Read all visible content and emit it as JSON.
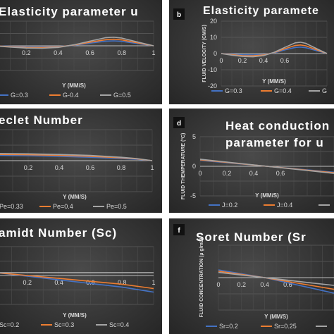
{
  "chart_data": [
    {
      "panel": "a",
      "type": "line",
      "title": "Elasticity parameter u",
      "xlabel": "Y (MM/S)",
      "ylabel": "",
      "xlim": [
        0,
        1
      ],
      "ylim": [
        -20,
        20
      ],
      "x_ticks": [
        "0.2",
        "0.4",
        "0.6",
        "0.8",
        "1"
      ],
      "y_ticks": [],
      "legend_position": "bottom",
      "x": [
        0,
        0.1,
        0.2,
        0.3,
        0.4,
        0.5,
        0.6,
        0.7,
        0.75,
        0.8,
        0.9,
        1
      ],
      "series": [
        {
          "name": "G=0.3",
          "color": "#4472c4",
          "values": [
            0,
            -0.4,
            -0.8,
            -0.9,
            -0.6,
            0.4,
            2.2,
            3.8,
            4.0,
            3.6,
            1.8,
            0
          ]
        },
        {
          "name": "G-0.4",
          "color": "#ed7d31",
          "values": [
            0,
            -0.7,
            -1.3,
            -1.4,
            -0.9,
            0.6,
            2.9,
            5.0,
            5.3,
            4.8,
            2.4,
            0
          ]
        },
        {
          "name": "G=0.5",
          "color": "#a5a5a5",
          "values": [
            0,
            -1.0,
            -1.8,
            -2.0,
            -1.3,
            0.8,
            3.8,
            6.6,
            7.0,
            6.3,
            3.1,
            0
          ]
        }
      ]
    },
    {
      "panel": "b",
      "badge": "b",
      "type": "line",
      "title": "Elasticity paramete",
      "xlabel": "Y (MM/S)",
      "ylabel": "FLUID VELOCITY (CM/S)",
      "xlim": [
        0,
        1
      ],
      "ylim": [
        -20,
        20
      ],
      "x_ticks": [
        "0",
        "0.2",
        "0.4",
        "0.6"
      ],
      "y_ticks": [
        "20",
        "10",
        "0",
        "-10",
        "-20"
      ],
      "legend_position": "bottom",
      "x": [
        0,
        0.1,
        0.2,
        0.3,
        0.4,
        0.5,
        0.6,
        0.7,
        0.75,
        0.8,
        0.9,
        1
      ],
      "series": [
        {
          "name": "G=0.3",
          "color": "#4472c4",
          "values": [
            0,
            -0.4,
            -0.8,
            -0.9,
            -0.6,
            0.4,
            2.2,
            3.8,
            4.0,
            3.6,
            1.8,
            0
          ]
        },
        {
          "name": "G=0.4",
          "color": "#ed7d31",
          "values": [
            0,
            -0.7,
            -1.3,
            -1.4,
            -0.9,
            0.6,
            2.9,
            5.0,
            5.3,
            4.8,
            2.4,
            0
          ]
        },
        {
          "name": "G",
          "color": "#a5a5a5",
          "values": [
            0,
            -1.0,
            -1.8,
            -2.0,
            -1.3,
            0.8,
            3.8,
            6.6,
            7.0,
            6.3,
            3.1,
            0
          ]
        }
      ]
    },
    {
      "panel": "c",
      "type": "line",
      "title": "eclet Number",
      "xlabel": "Y (MM/S)",
      "ylabel": "",
      "xlim": [
        0,
        1
      ],
      "ylim": [
        -5,
        5
      ],
      "x_ticks": [
        "0.2",
        "0.4",
        "0.6",
        "0.8",
        "1"
      ],
      "y_ticks": [],
      "legend_position": "bottom",
      "x": [
        0,
        0.2,
        0.4,
        0.6,
        0.8,
        0.9,
        1
      ],
      "series": [
        {
          "name": "Pe=0.33",
          "color": "#4472c4",
          "values": [
            0.85,
            0.8,
            0.7,
            0.55,
            0.35,
            0.22,
            0
          ]
        },
        {
          "name": "Pe=0.4",
          "color": "#ed7d31",
          "values": [
            1.0,
            0.95,
            0.85,
            0.7,
            0.45,
            0.28,
            0
          ]
        },
        {
          "name": "Pe=0.5",
          "color": "#a5a5a5",
          "values": [
            1.15,
            1.1,
            1.0,
            0.85,
            0.55,
            0.34,
            0
          ]
        }
      ]
    },
    {
      "panel": "d",
      "badge": "d",
      "type": "line",
      "title": "Heat conduction",
      "title2": "parameter for u",
      "xlabel": "Y (MM/S)",
      "ylabel": "FLUID THEMPERATURE (ºC)",
      "xlim": [
        0,
        1
      ],
      "ylim": [
        -5,
        5
      ],
      "x_ticks": [
        "0",
        "0.2",
        "0.4",
        "0.6"
      ],
      "y_ticks": [
        "5",
        "0",
        "-5"
      ],
      "legend_position": "bottom",
      "x": [
        0,
        0.2,
        0.4,
        0.6,
        0.8,
        1
      ],
      "series": [
        {
          "name": "J=0.2",
          "color": "#4472c4",
          "values": [
            1.0,
            0.6,
            0.2,
            -0.2,
            -0.6,
            -1.0
          ]
        },
        {
          "name": "J=0.4",
          "color": "#ed7d31",
          "values": [
            1.1,
            0.66,
            0.22,
            -0.22,
            -0.66,
            -1.1
          ]
        },
        {
          "name": "",
          "color": "#a5a5a5",
          "values": [
            1.2,
            0.72,
            0.24,
            -0.24,
            -0.72,
            -1.2
          ]
        }
      ]
    },
    {
      "panel": "e",
      "type": "line",
      "title": "amidt Number (Sc)",
      "xlabel": "Y (MM/S)",
      "ylabel": "",
      "xlim": [
        0,
        1
      ],
      "ylim": [
        -4,
        4
      ],
      "x_ticks": [
        "0.2",
        "0.4",
        "0.6",
        "0.8",
        "1"
      ],
      "y_ticks": [],
      "legend_position": "bottom",
      "x": [
        0,
        0.2,
        0.4,
        0.6,
        0.8,
        1
      ],
      "series": [
        {
          "name": "Sc=0.2",
          "color": "#4472c4",
          "values": [
            0.4,
            -0.1,
            -0.6,
            -1.1,
            -1.6,
            -2.3
          ]
        },
        {
          "name": "Sc=0.3",
          "color": "#ed7d31",
          "values": [
            0.4,
            0.0,
            -0.4,
            -0.8,
            -1.2,
            -1.8
          ]
        },
        {
          "name": "Sc=0.4",
          "color": "#a5a5a5",
          "values": [
            0.4,
            0.4,
            0.4,
            0.4,
            0.4,
            0.4
          ]
        }
      ]
    },
    {
      "panel": "f",
      "badge": "f",
      "type": "line",
      "title": "Soret Number (Sr",
      "xlabel": "Y (MM/S)",
      "ylabel": "FLUID CONCENTRATION (µ g/mL)",
      "xlim": [
        0,
        1
      ],
      "ylim": [
        -5,
        5
      ],
      "x_ticks": [
        "0",
        "0.2",
        "0.4",
        "0.6"
      ],
      "y_ticks": [],
      "legend_position": "bottom",
      "x": [
        0,
        0.2,
        0.4,
        0.6,
        0.8,
        1
      ],
      "series": [
        {
          "name": "Sr=0.2",
          "color": "#4472c4",
          "values": [
            1.2,
            0.6,
            0.0,
            -0.8,
            -1.6,
            -2.4
          ]
        },
        {
          "name": "Sr=0.25",
          "color": "#ed7d31",
          "values": [
            1.0,
            0.5,
            0.0,
            -0.6,
            -1.2,
            -1.8
          ]
        },
        {
          "name": "",
          "color": "#a5a5a5",
          "values": [
            0.8,
            0.4,
            0.0,
            -0.4,
            -0.8,
            -1.2
          ]
        }
      ]
    }
  ]
}
